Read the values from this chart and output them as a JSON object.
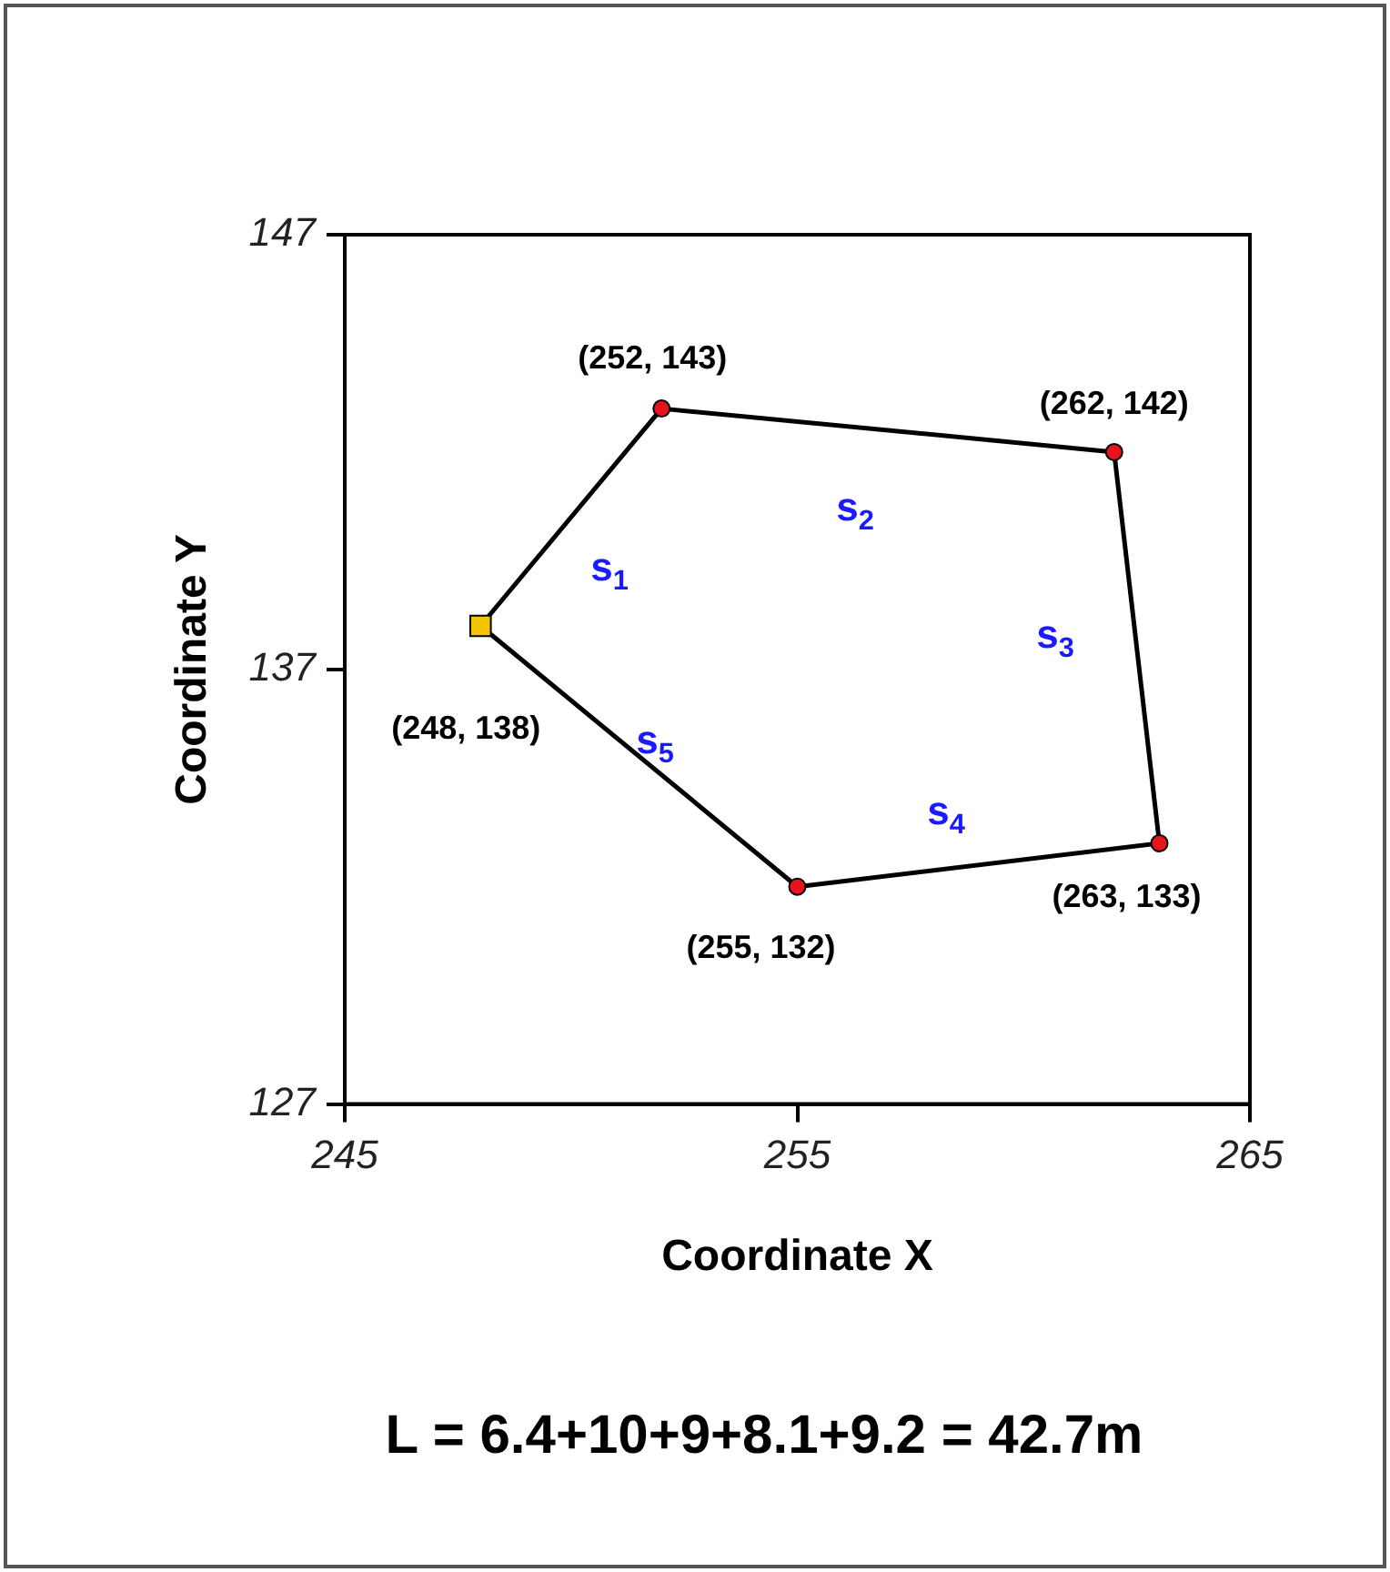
{
  "chart_data": {
    "type": "line",
    "xlabel": "Coordinate X",
    "ylabel": "Coordinate Y",
    "xlim": [
      245,
      265
    ],
    "xticks": [
      245,
      255,
      265
    ],
    "ylim": [
      127,
      147
    ],
    "yticks": [
      127,
      137,
      147
    ],
    "grid": false,
    "legend": false,
    "series": [
      {
        "type": "line",
        "color": "#000000",
        "marker": "none",
        "x": [
          248,
          252,
          262,
          263
        ],
        "values": [
          138,
          143,
          142,
          133
        ]
      },
      {
        "type": "line",
        "color": "#000000",
        "marker": "none",
        "x": [
          248,
          255,
          263
        ],
        "values": [
          138,
          132,
          133
        ]
      },
      {
        "type": "scatter",
        "color": "#e8141b",
        "marker": "circle",
        "x": [
          252,
          262,
          263,
          255
        ],
        "values": [
          143,
          142,
          133,
          132
        ],
        "value_labels": [
          "(252, 143)",
          "(262, 142)",
          "(263, 133)",
          "(255, 132)"
        ]
      },
      {
        "type": "scatter",
        "color": "#f5c400",
        "marker": "square",
        "x": [
          248
        ],
        "values": [
          138
        ],
        "value_labels": [
          "(248, 138)"
        ]
      }
    ],
    "annotations": [
      "s$_{1}$",
      "s$_{2}$",
      "s$_{3}$",
      "s$_{4}$",
      "s$_{5}$",
      "L = 6.4+10+9+8.1+9.2 = 42.7m"
    ]
  }
}
